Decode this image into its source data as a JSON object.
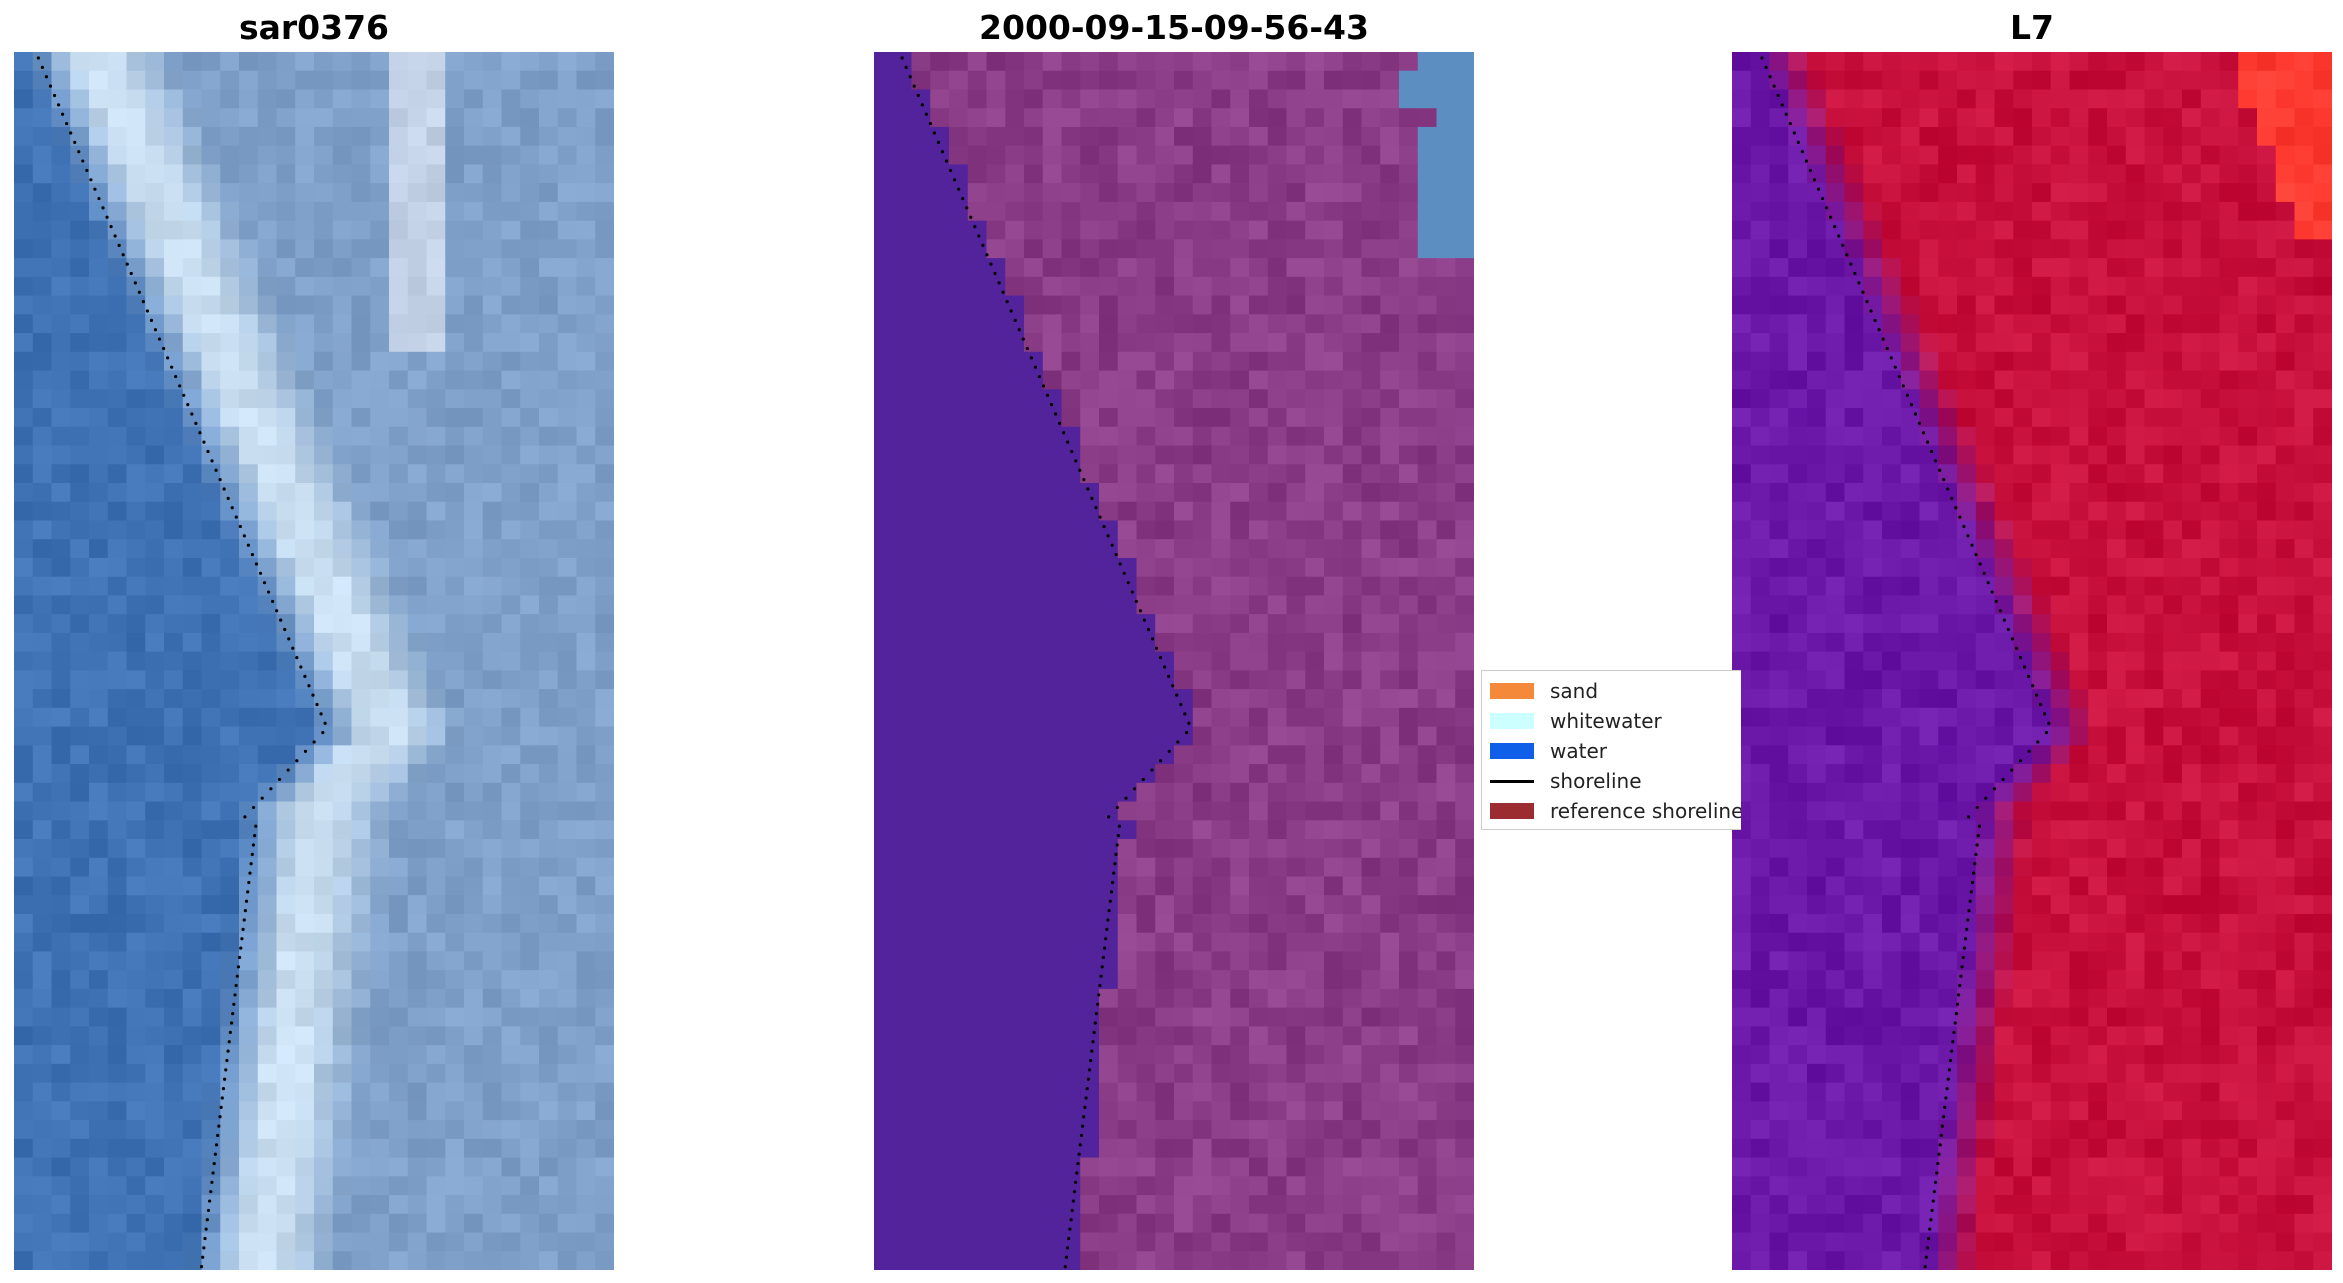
{
  "panels": [
    {
      "title": "sar0376",
      "kind": "rgb"
    },
    {
      "title": "2000-09-15-09-56-43",
      "kind": "classified"
    },
    {
      "title": "L7",
      "kind": "index"
    }
  ],
  "legend": {
    "items": [
      {
        "label": "sand",
        "color": "#f5893a",
        "type": "patch"
      },
      {
        "label": "whitewater",
        "color": "#ccffff",
        "type": "patch"
      },
      {
        "label": "water",
        "color": "#0f5fe8",
        "type": "patch"
      },
      {
        "label": "shoreline",
        "color": "#000000",
        "type": "line"
      },
      {
        "label": "reference shoreline",
        "color": "#9b2d30",
        "type": "patch"
      }
    ]
  },
  "colors": {
    "rgb_water": "#3f72b4",
    "rgb_surf": "#c9def0",
    "rgb_land": "#7fa0c8",
    "class_water": "#52239a",
    "class_land": "#8a3d86",
    "class_corner": "#5c8ec1",
    "index_water": "#6b18a8",
    "index_land": "#c8103c",
    "index_corner": "#ff3a30"
  }
}
